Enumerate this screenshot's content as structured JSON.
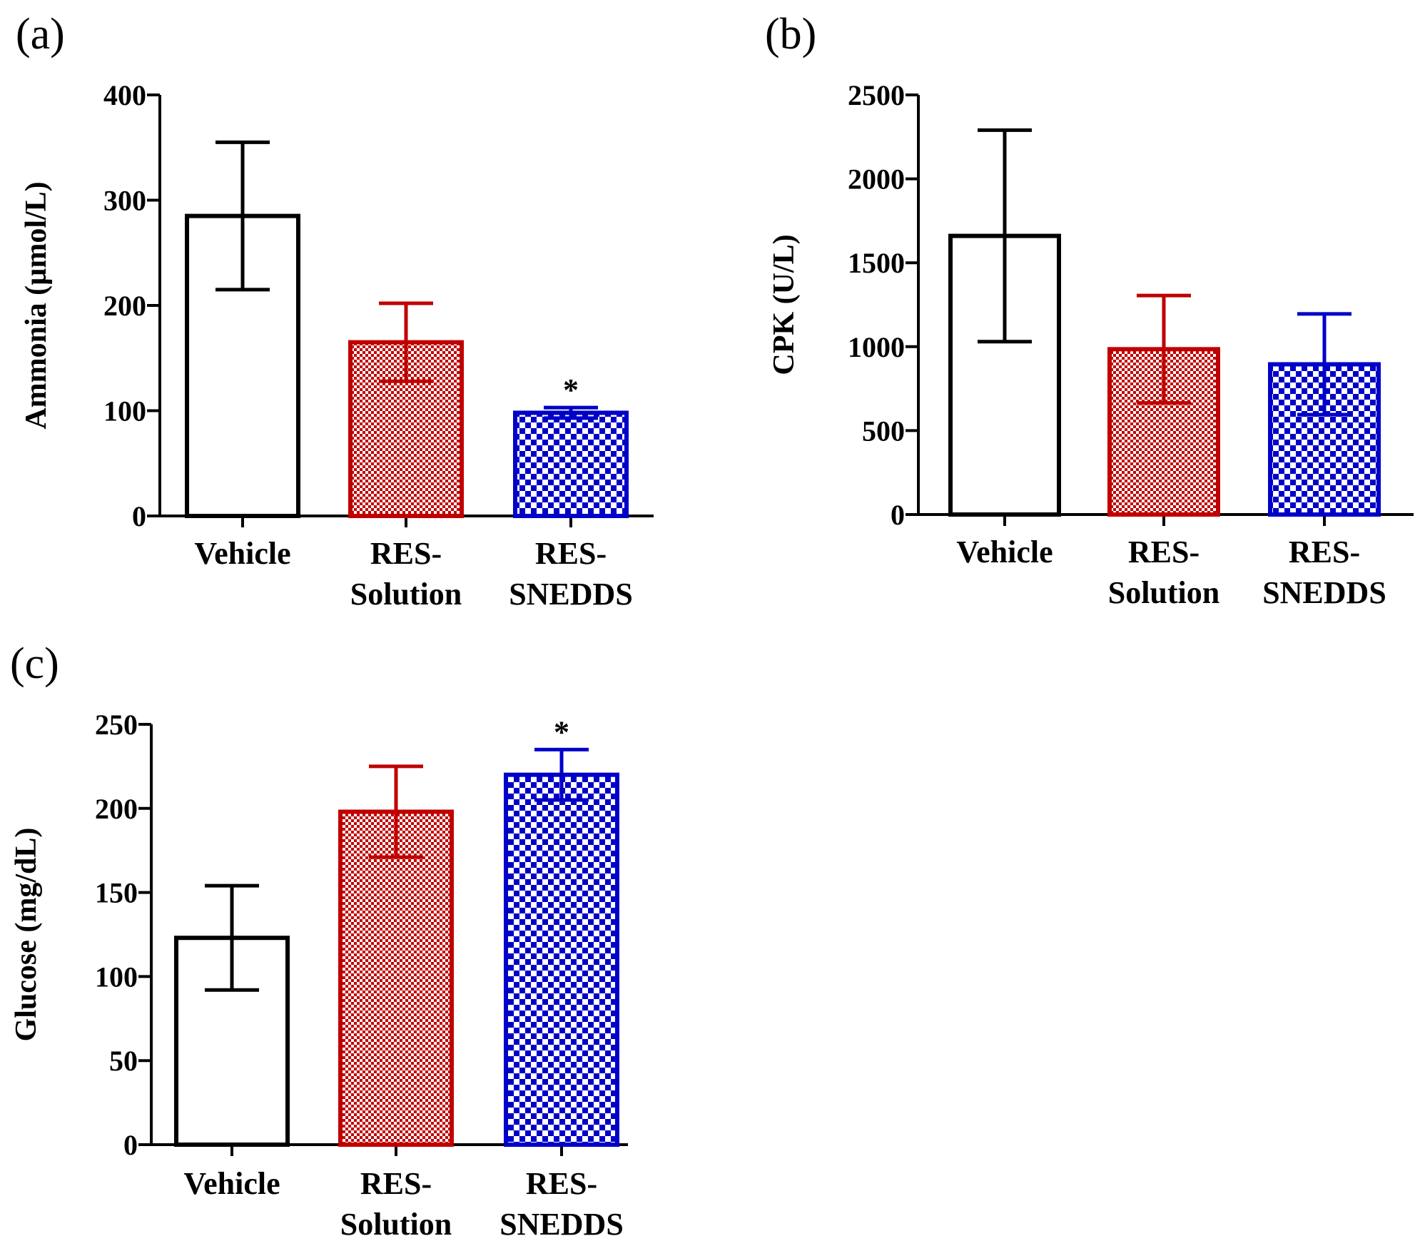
{
  "colors": {
    "vehicle": "#000000",
    "res_solution": "#c00000",
    "res_snedds": "#0000c8"
  },
  "chart_data": [
    {
      "panel": "(a)",
      "type": "bar",
      "categories": [
        [
          "Vehicle"
        ],
        [
          "RES-",
          "Solution"
        ],
        [
          "RES-",
          "SNEDDS"
        ]
      ],
      "values": [
        285,
        165,
        98
      ],
      "errors": [
        70,
        37,
        5
      ],
      "significance": [
        "",
        "",
        "*"
      ],
      "ylabel": "Ammonia (µmol/L)",
      "ylim": [
        0,
        400
      ],
      "yticks": [
        0,
        100,
        200,
        300,
        400
      ]
    },
    {
      "panel": "(b)",
      "type": "bar",
      "categories": [
        [
          "Vehicle"
        ],
        [
          "RES-",
          "Solution"
        ],
        [
          "RES-",
          "SNEDDS"
        ]
      ],
      "values": [
        1660,
        985,
        895
      ],
      "errors": [
        630,
        320,
        300
      ],
      "significance": [
        "",
        "",
        ""
      ],
      "ylabel": "CPK (U/L)",
      "ylim": [
        0,
        2500
      ],
      "yticks": [
        0,
        500,
        1000,
        1500,
        2000,
        2500
      ]
    },
    {
      "panel": "(c)",
      "type": "bar",
      "categories": [
        [
          "Vehicle"
        ],
        [
          "RES-",
          "Solution"
        ],
        [
          "RES-",
          "SNEDDS"
        ]
      ],
      "values": [
        123,
        198,
        220
      ],
      "errors": [
        31,
        27,
        15
      ],
      "significance": [
        "",
        "",
        "*"
      ],
      "ylabel": "Glucose (mg/dL)",
      "ylim": [
        0,
        250
      ],
      "yticks": [
        0,
        50,
        100,
        150,
        200,
        250
      ]
    }
  ]
}
